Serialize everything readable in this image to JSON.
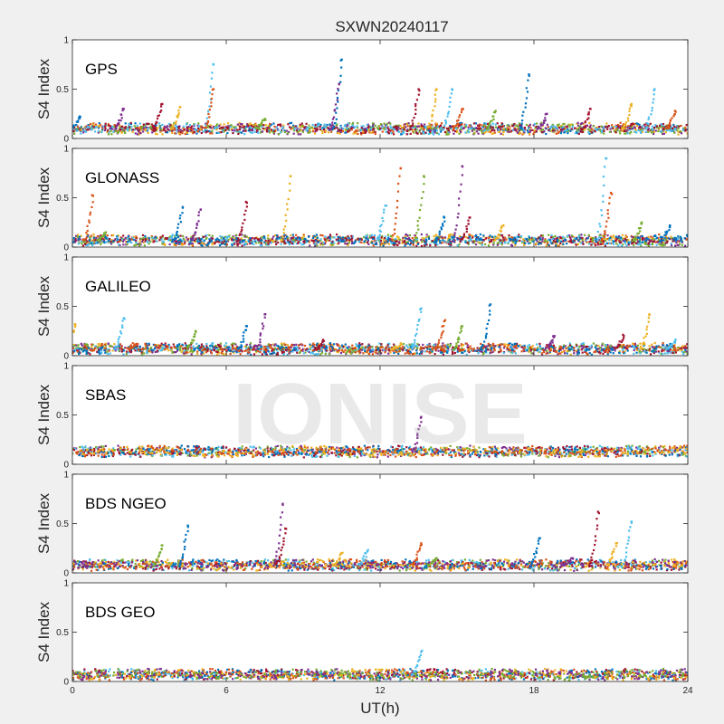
{
  "figure": {
    "title": "SXWN20240117",
    "xlabel": "UT(h)",
    "watermark": "IONISE",
    "background_color": "#f0f0f0",
    "axes_color": "#ffffff",
    "series_colors": [
      "#0072bd",
      "#d95319",
      "#edb120",
      "#7e2f8e",
      "#77ac30",
      "#4dbeee",
      "#a2142f"
    ]
  },
  "chart_data": [
    {
      "type": "scatter",
      "panel": "GPS",
      "ylabel": "S4 Index",
      "xlim": [
        0,
        24
      ],
      "ylim": [
        0,
        1
      ],
      "xticks": [
        "0",
        "6",
        "12",
        "18",
        "24"
      ],
      "yticks": [
        "0",
        "0.5",
        "1"
      ],
      "baseline": 0.1,
      "spikes": [
        [
          0.3,
          0.22
        ],
        [
          2.0,
          0.3
        ],
        [
          3.5,
          0.35
        ],
        [
          4.2,
          0.32
        ],
        [
          5.5,
          0.75
        ],
        [
          5.5,
          0.5
        ],
        [
          7.5,
          0.2
        ],
        [
          10.5,
          0.8
        ],
        [
          10.4,
          0.55
        ],
        [
          13.5,
          0.5
        ],
        [
          14.2,
          0.5
        ],
        [
          14.8,
          0.5
        ],
        [
          15.2,
          0.3
        ],
        [
          16.5,
          0.28
        ],
        [
          17.8,
          0.65
        ],
        [
          18.5,
          0.25
        ],
        [
          20.2,
          0.3
        ],
        [
          21.8,
          0.35
        ],
        [
          22.7,
          0.5
        ],
        [
          23.5,
          0.28
        ]
      ]
    },
    {
      "type": "scatter",
      "panel": "GLONASS",
      "ylabel": "S4 Index",
      "xlim": [
        0,
        24
      ],
      "ylim": [
        0,
        1
      ],
      "xticks": [
        "0",
        "6",
        "12",
        "18",
        "24"
      ],
      "yticks": [
        "0",
        "0.5",
        "1"
      ],
      "baseline": 0.07,
      "spikes": [
        [
          0.8,
          0.52
        ],
        [
          1.3,
          0.15
        ],
        [
          4.3,
          0.4
        ],
        [
          5.0,
          0.38
        ],
        [
          6.8,
          0.45
        ],
        [
          8.5,
          0.72
        ],
        [
          12.2,
          0.42
        ],
        [
          12.8,
          0.8
        ],
        [
          13.7,
          0.72
        ],
        [
          14.5,
          0.3
        ],
        [
          15.2,
          0.82
        ],
        [
          15.5,
          0.3
        ],
        [
          16.8,
          0.22
        ],
        [
          20.8,
          0.9
        ],
        [
          21.0,
          0.55
        ],
        [
          22.2,
          0.25
        ],
        [
          23.3,
          0.22
        ]
      ]
    },
    {
      "type": "scatter",
      "panel": "GALILEO",
      "ylabel": "S4 Index",
      "xlim": [
        0,
        24
      ],
      "ylim": [
        0,
        1
      ],
      "xticks": [
        "0",
        "6",
        "12",
        "18",
        "24"
      ],
      "yticks": [
        "0",
        "0.5",
        "1"
      ],
      "baseline": 0.07,
      "spikes": [
        [
          0.1,
          0.32
        ],
        [
          2.0,
          0.38
        ],
        [
          2.5,
          0.12
        ],
        [
          4.8,
          0.25
        ],
        [
          6.8,
          0.3
        ],
        [
          7.5,
          0.42
        ],
        [
          9.8,
          0.15
        ],
        [
          12.8,
          0.12
        ],
        [
          13.6,
          0.48
        ],
        [
          14.5,
          0.35
        ],
        [
          15.2,
          0.3
        ],
        [
          16.3,
          0.52
        ],
        [
          18.8,
          0.2
        ],
        [
          21.5,
          0.2
        ],
        [
          22.5,
          0.42
        ],
        [
          23.5,
          0.15
        ]
      ]
    },
    {
      "type": "scatter",
      "panel": "SBAS",
      "ylabel": "S4 Index",
      "xlim": [
        0,
        24
      ],
      "ylim": [
        0,
        1
      ],
      "xticks": [
        "0",
        "6",
        "12",
        "18",
        "24"
      ],
      "yticks": [
        "0",
        "0.5",
        "1"
      ],
      "baseline": 0.13,
      "spikes": [
        [
          13.6,
          0.48
        ]
      ]
    },
    {
      "type": "scatter",
      "panel": "BDS NGEO",
      "ylabel": "S4 Index",
      "xlim": [
        0,
        24
      ],
      "ylim": [
        0,
        1
      ],
      "xticks": [
        "0",
        "6",
        "12",
        "18",
        "24"
      ],
      "yticks": [
        "0",
        "0.5",
        "1"
      ],
      "baseline": 0.08,
      "spikes": [
        [
          3.5,
          0.28
        ],
        [
          4.5,
          0.48
        ],
        [
          8.2,
          0.7
        ],
        [
          8.3,
          0.45
        ],
        [
          10.5,
          0.2
        ],
        [
          11.5,
          0.22
        ],
        [
          13.6,
          0.3
        ],
        [
          14.2,
          0.15
        ],
        [
          18.2,
          0.35
        ],
        [
          19.5,
          0.15
        ],
        [
          20.5,
          0.62
        ],
        [
          21.2,
          0.3
        ],
        [
          21.8,
          0.52
        ]
      ]
    },
    {
      "type": "scatter",
      "panel": "BDS GEO",
      "ylabel": "S4 Index",
      "xlim": [
        0,
        24
      ],
      "ylim": [
        0,
        1
      ],
      "xticks": [
        "0",
        "6",
        "12",
        "18",
        "24"
      ],
      "yticks": [
        "0",
        "0.5",
        "1"
      ],
      "baseline": 0.07,
      "spikes": [
        [
          13.6,
          0.3
        ]
      ]
    }
  ]
}
